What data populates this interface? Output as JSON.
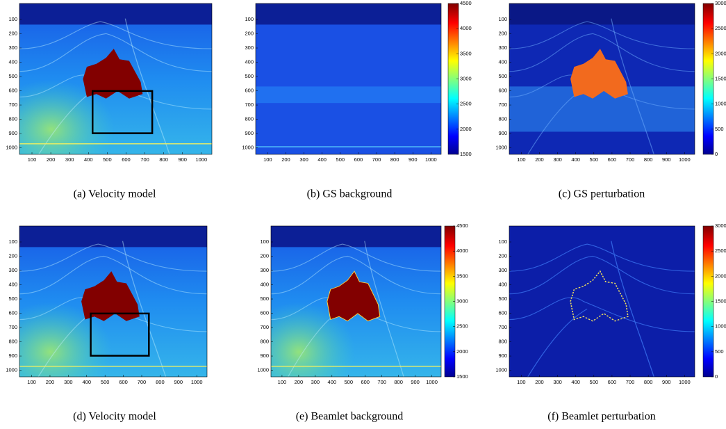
{
  "figure": {
    "panels": [
      {
        "caption": "(a)  Velocity model",
        "xticks": [
          100,
          200,
          300,
          400,
          500,
          600,
          700,
          800,
          900,
          1000
        ],
        "yticks": [
          100,
          200,
          300,
          400,
          500,
          600,
          700,
          800,
          900,
          1000
        ]
      },
      {
        "caption": "(b)  GS background",
        "xticks": [
          100,
          200,
          300,
          400,
          500,
          600,
          700,
          800,
          900,
          1000
        ],
        "yticks": [
          100,
          200,
          300,
          400,
          500,
          600,
          700,
          800,
          900,
          1000
        ],
        "colorbar_ticks": [
          1500,
          2000,
          2500,
          3000,
          3500,
          4000,
          4500
        ]
      },
      {
        "caption": "(c)  GS perturbation",
        "xticks": [
          100,
          200,
          300,
          400,
          500,
          600,
          700,
          800,
          900,
          1000
        ],
        "yticks": [
          100,
          200,
          300,
          400,
          500,
          600,
          700,
          800,
          900,
          1000
        ],
        "colorbar_ticks": [
          0,
          500,
          1000,
          1500,
          2000,
          2500,
          3000
        ]
      },
      {
        "caption": "(d)  Velocity model",
        "xticks": [
          100,
          200,
          300,
          400,
          500,
          600,
          700,
          800,
          900,
          1000
        ],
        "yticks": [
          100,
          200,
          300,
          400,
          500,
          600,
          700,
          800,
          900,
          1000
        ]
      },
      {
        "caption": "(e)  Beamlet background",
        "xticks": [
          100,
          200,
          300,
          400,
          500,
          600,
          700,
          800,
          900,
          1000
        ],
        "yticks": [
          100,
          200,
          300,
          400,
          500,
          600,
          700,
          800,
          900,
          1000
        ],
        "colorbar_ticks": [
          1500,
          2000,
          2500,
          3000,
          3500,
          4000,
          4500
        ]
      },
      {
        "caption": "(f)  Beamlet perturbation",
        "xticks": [
          100,
          200,
          300,
          400,
          500,
          600,
          700,
          800,
          900,
          1000
        ],
        "yticks": [
          100,
          200,
          300,
          400,
          500,
          600,
          700,
          800,
          900,
          1000
        ],
        "colorbar_ticks": [
          0,
          500,
          1000,
          1500,
          2000,
          2500,
          3000
        ]
      }
    ]
  }
}
